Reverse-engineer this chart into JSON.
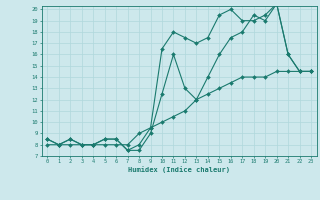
{
  "title": "",
  "xlabel": "Humidex (Indice chaleur)",
  "xlim": [
    -0.5,
    23.5
  ],
  "ylim": [
    7,
    20.3
  ],
  "xticks": [
    0,
    1,
    2,
    3,
    4,
    5,
    6,
    7,
    8,
    9,
    10,
    11,
    12,
    13,
    14,
    15,
    16,
    17,
    18,
    19,
    20,
    21,
    22,
    23
  ],
  "yticks": [
    7,
    8,
    9,
    10,
    11,
    12,
    13,
    14,
    15,
    16,
    17,
    18,
    19,
    20
  ],
  "bg_color": "#cde8ec",
  "line_color": "#1a7a6e",
  "grid_color": "#b0d8dc",
  "line1_x": [
    0,
    1,
    2,
    3,
    4,
    5,
    6,
    7,
    8,
    9,
    10,
    11,
    12,
    13,
    14,
    15,
    16,
    17,
    18,
    19,
    20,
    21,
    22,
    23
  ],
  "line1_y": [
    8,
    8,
    8,
    8,
    8,
    8,
    8,
    8,
    9,
    9.5,
    10,
    10.5,
    11,
    12,
    12.5,
    13,
    13.5,
    14,
    14,
    14,
    14.5,
    14.5,
    14.5,
    14.5
  ],
  "line2_x": [
    0,
    1,
    2,
    3,
    4,
    5,
    6,
    7,
    8,
    9,
    10,
    11,
    12,
    13,
    14,
    15,
    16,
    17,
    18,
    19,
    20,
    21,
    22,
    23
  ],
  "line2_y": [
    8.5,
    8,
    8.5,
    8,
    8,
    8.5,
    8.5,
    7.5,
    7.5,
    9,
    12.5,
    16,
    13,
    12,
    14,
    16,
    17.5,
    18,
    19.5,
    19,
    20.5,
    16,
    14.5,
    14.5
  ],
  "line3_x": [
    0,
    1,
    2,
    3,
    4,
    5,
    6,
    7,
    8,
    9,
    10,
    11,
    12,
    13,
    14,
    15,
    16,
    17,
    18,
    19,
    20,
    21,
    22,
    23
  ],
  "line3_y": [
    8.5,
    8,
    8.5,
    8,
    8,
    8.5,
    8.5,
    7.5,
    8,
    9.5,
    16.5,
    18,
    17.5,
    17,
    17.5,
    19.5,
    20,
    19,
    19,
    19.5,
    20.5,
    16,
    14.5,
    14.5
  ]
}
